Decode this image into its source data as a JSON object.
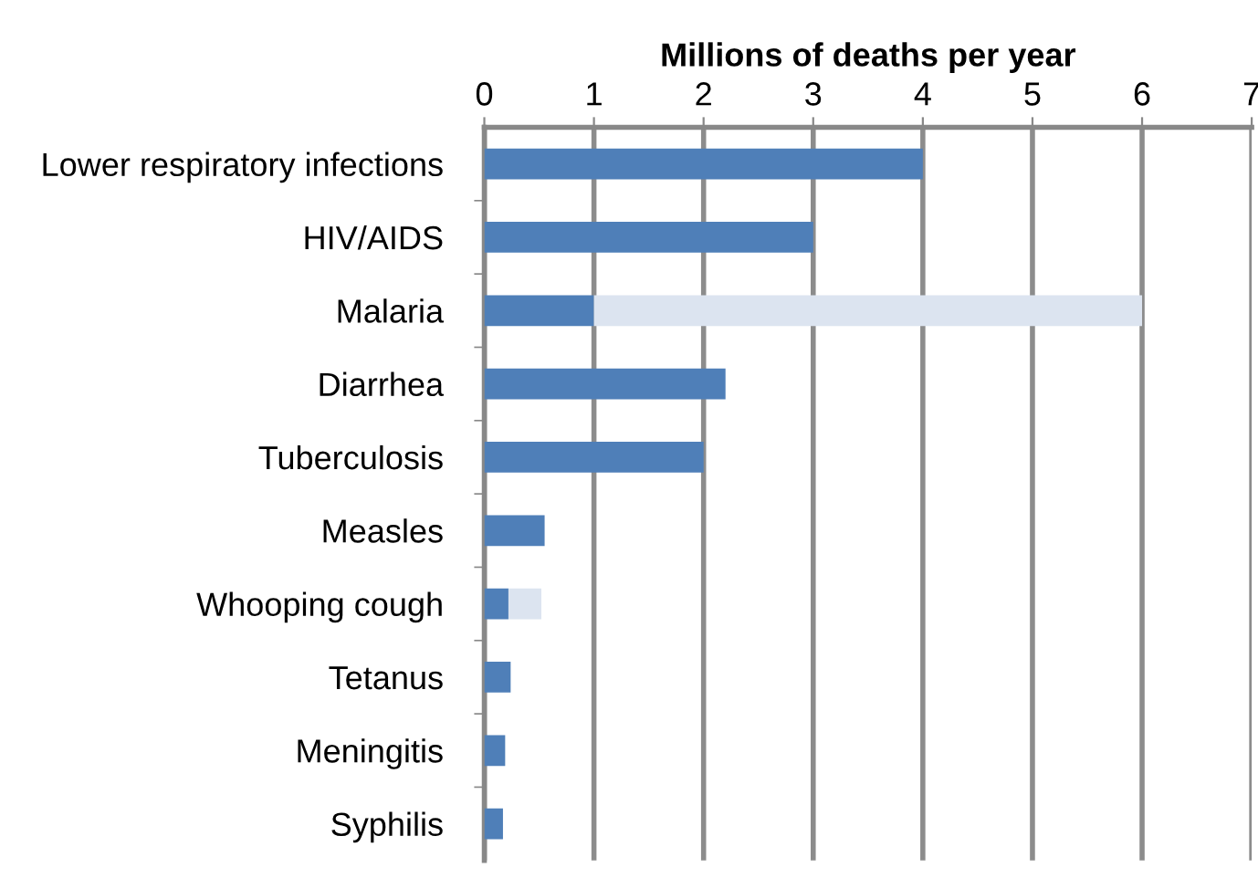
{
  "chart_data": {
    "type": "bar",
    "orientation": "horizontal",
    "stacked": true,
    "xlabel": "Millions of deaths per year",
    "categories": [
      "Lower respiratory infections",
      "HIV/AIDS",
      "Malaria",
      "Diarrhea",
      "Tuberculosis",
      "Measles",
      "Whooping cough",
      "Tetanus",
      "Meningitis",
      "Syphilis"
    ],
    "series": [
      {
        "color": "#4f7fb8",
        "values": [
          4.0,
          3.0,
          1.0,
          2.2,
          2.0,
          0.55,
          0.22,
          0.24,
          0.19,
          0.17
        ]
      },
      {
        "color": "#dce4f0",
        "values": [
          null,
          null,
          5.0,
          null,
          null,
          null,
          0.3,
          null,
          null,
          null
        ]
      }
    ],
    "xlim": [
      0,
      7
    ],
    "xticks": [
      0,
      1,
      2,
      3,
      4,
      5,
      6,
      7
    ],
    "grid": "x",
    "legend": false
  }
}
